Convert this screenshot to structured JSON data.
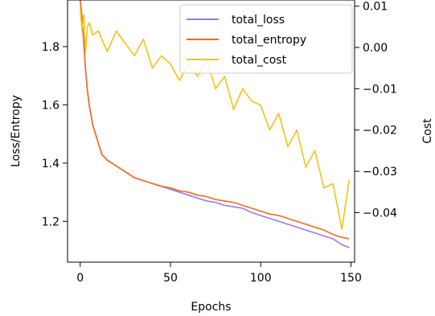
{
  "chart_data": {
    "type": "line",
    "xlabel": "Epochs",
    "ylabel_left": "Loss/Entropy",
    "ylabel_right": "Cost",
    "xlim": [
      -7,
      152
    ],
    "ylim_left": [
      1.06,
      1.96
    ],
    "ylim_right": [
      -0.052,
      0.0115
    ],
    "x_ticks": [
      0,
      50,
      100,
      150
    ],
    "x_tick_labels": [
      "0",
      "50",
      "100",
      "150"
    ],
    "y_left_ticks": [
      1.2,
      1.4,
      1.6,
      1.8
    ],
    "y_left_tick_labels": [
      "1.2",
      "1.4",
      "1.6",
      "1.8"
    ],
    "y_right_ticks": [
      0.01,
      0.0,
      -0.01,
      -0.02,
      -0.03,
      -0.04
    ],
    "y_right_tick_labels": [
      "0.01",
      "0.00",
      "−0.01",
      "−0.02",
      "−0.03",
      "−0.04"
    ],
    "grid": false,
    "legend_position": "top-right",
    "x": [
      0,
      1,
      2,
      3,
      4,
      5,
      7,
      10,
      12,
      15,
      20,
      25,
      30,
      35,
      40,
      45,
      50,
      55,
      60,
      65,
      70,
      75,
      80,
      85,
      90,
      95,
      100,
      105,
      110,
      115,
      120,
      125,
      130,
      135,
      140,
      145,
      149
    ],
    "series": [
      {
        "name": "total_loss",
        "axis": "left",
        "color": "#9b79e6",
        "values": [
          1.96,
          1.9,
          1.81,
          1.72,
          1.65,
          1.6,
          1.53,
          1.47,
          1.43,
          1.41,
          1.39,
          1.37,
          1.35,
          1.34,
          1.33,
          1.32,
          1.31,
          1.3,
          1.29,
          1.28,
          1.27,
          1.265,
          1.255,
          1.25,
          1.245,
          1.23,
          1.22,
          1.21,
          1.2,
          1.19,
          1.18,
          1.17,
          1.16,
          1.15,
          1.14,
          1.12,
          1.11
        ]
      },
      {
        "name": "total_entropy",
        "axis": "left",
        "color": "#f26b1d",
        "values": [
          1.96,
          1.9,
          1.81,
          1.72,
          1.65,
          1.6,
          1.53,
          1.47,
          1.43,
          1.41,
          1.39,
          1.37,
          1.35,
          1.34,
          1.33,
          1.32,
          1.315,
          1.305,
          1.3,
          1.29,
          1.285,
          1.275,
          1.27,
          1.265,
          1.255,
          1.245,
          1.235,
          1.225,
          1.22,
          1.21,
          1.2,
          1.19,
          1.18,
          1.17,
          1.155,
          1.145,
          1.14
        ]
      },
      {
        "name": "total_cost",
        "axis": "right",
        "color": "#f2c315",
        "values": [
          0.0095,
          0.004,
          0.008,
          -0.001,
          0.005,
          0.006,
          0.003,
          0.004,
          0.002,
          -0.001,
          0.004,
          0.001,
          -0.002,
          0.002,
          -0.005,
          -0.002,
          -0.004,
          -0.008,
          -0.004,
          -0.007,
          -0.003,
          -0.01,
          -0.007,
          -0.015,
          -0.01,
          -0.013,
          -0.014,
          -0.02,
          -0.016,
          -0.024,
          -0.02,
          -0.029,
          -0.025,
          -0.034,
          -0.033,
          -0.044,
          -0.032
        ]
      }
    ]
  }
}
